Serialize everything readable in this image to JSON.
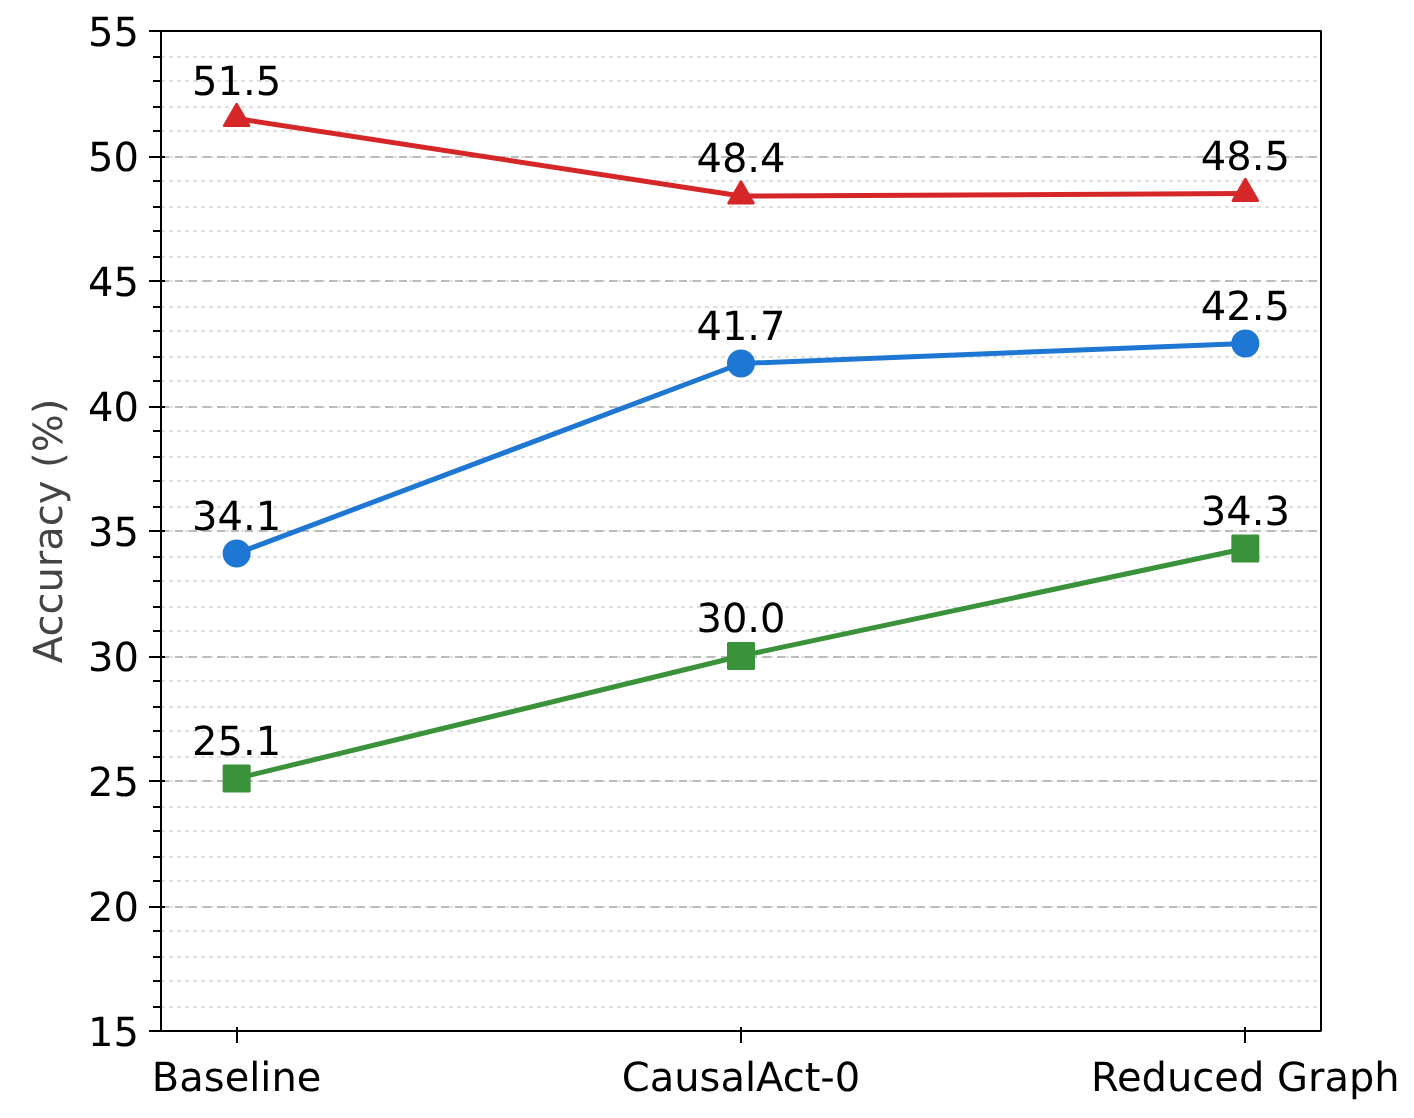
{
  "chart_data": {
    "type": "line",
    "ylabel": "Accuracy (%)",
    "categories": [
      "Baseline",
      "CausalAct-0",
      "Reduced Graph"
    ],
    "series": [
      {
        "color": "#1f77d4",
        "marker": "circle",
        "values": [
          34.1,
          41.7,
          42.5
        ],
        "value_labels": [
          "34.1",
          "41.7",
          "42.5"
        ]
      },
      {
        "color": "#3a923a",
        "marker": "square",
        "values": [
          25.1,
          30.0,
          34.3
        ],
        "value_labels": [
          "25.1",
          "30.0",
          "34.3"
        ]
      },
      {
        "color": "#d62728",
        "marker": "triangle",
        "values": [
          51.5,
          48.4,
          48.5
        ],
        "value_labels": [
          "51.5",
          "48.4",
          "48.5"
        ]
      }
    ],
    "ylim": [
      15,
      55
    ],
    "yticks": [
      15,
      20,
      25,
      30,
      35,
      40,
      45,
      50,
      55
    ],
    "grid": "y",
    "line_style": "solid"
  }
}
